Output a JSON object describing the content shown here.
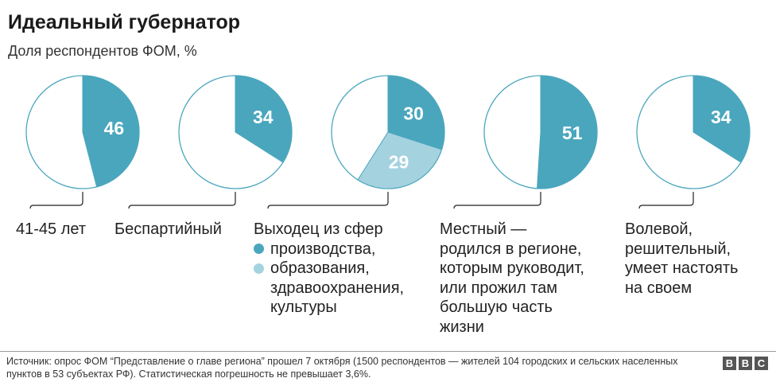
{
  "title": "Идеальный губернатор",
  "subtitle": "Доля респондентов ФОМ, %",
  "chart_data": {
    "type": "pie",
    "title": "Идеальный губернатор",
    "subtitle": "Доля респондентов ФОМ, %",
    "unit": "%",
    "colors": {
      "primary": "#4aa6bd",
      "secondary": "#a5d2df",
      "rest": "#ffffff",
      "stroke": "#4aa6bd"
    },
    "pies": [
      {
        "label": "41-45 лет",
        "slices": [
          {
            "name": "41-45 лет",
            "value": 46,
            "color": "primary"
          }
        ]
      },
      {
        "label": "Беспартийный",
        "slices": [
          {
            "name": "Беспартийный",
            "value": 34,
            "color": "primary"
          }
        ]
      },
      {
        "label": "Выходец из сфер",
        "slices": [
          {
            "name": "производства",
            "value": 30,
            "color": "primary"
          },
          {
            "name": "образования, здравоохранения, культуры",
            "value": 29,
            "color": "secondary"
          }
        ]
      },
      {
        "label": "Местный — родился в регионе, которым руководит, или прожил там большую часть жизни",
        "slices": [
          {
            "name": "Местный",
            "value": 51,
            "color": "primary"
          }
        ]
      },
      {
        "label": "Волевой, решительный, умеет настоять на своем",
        "slices": [
          {
            "name": "Волевой",
            "value": 34,
            "color": "primary"
          }
        ]
      }
    ]
  },
  "labels": {
    "age": "41-45 лет",
    "nonparty": "Беспартийный",
    "spheres_head": "Выходец из сфер",
    "spheres_a": "производства,",
    "spheres_b1": "образования,",
    "spheres_b2": "здравоохранения,",
    "spheres_b3": "культуры",
    "local_1": "Местный —",
    "local_2": "родился в регионе,",
    "local_3": "которым руководит,",
    "local_4": "или прожил там",
    "local_5": "большую часть",
    "local_6": "жизни",
    "will_1": "Волевой,",
    "will_2": "решительный,",
    "will_3": "умеет настоять",
    "will_4": "на своем"
  },
  "source": "Источник: опрос ФОМ “Представление о главе региона” прошел 7 октября (1500 респондентов — жителей 104 городских и сельских населенных пунктов в 53 субъектах РФ). Статистическая погрешность не превышает 3,6%.",
  "logo": {
    "letters": [
      "B",
      "B",
      "C"
    ]
  }
}
